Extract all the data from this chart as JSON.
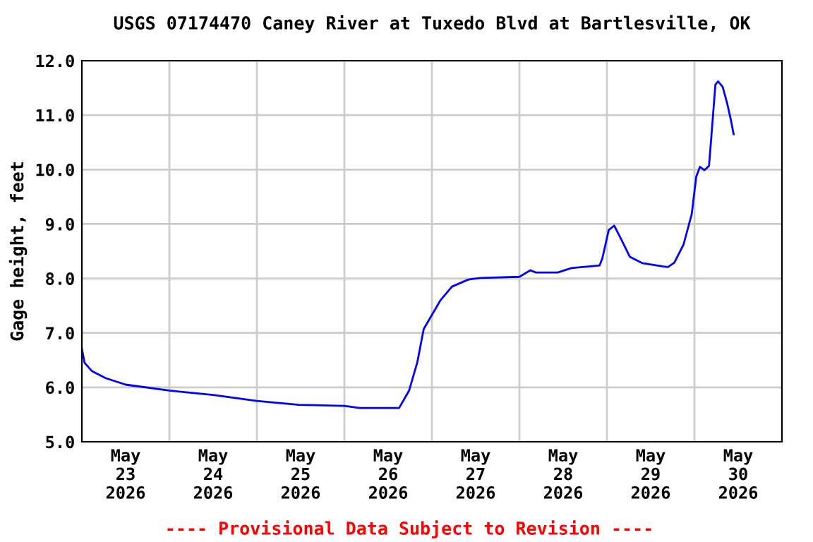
{
  "chart_data": {
    "type": "line",
    "title": "USGS 07174470 Caney River at Tuxedo Blvd at Bartlesville, OK",
    "ylabel": "Gage height, feet",
    "x": [
      "2026-05-23T00:00",
      "2026-05-23T00:45",
      "2026-05-23T02:45",
      "2026-05-23T06:30",
      "2026-05-23T12:00",
      "2026-05-24T00:00",
      "2026-05-24T12:00",
      "2026-05-25T00:00",
      "2026-05-25T11:30",
      "2026-05-26T00:00",
      "2026-05-26T04:15",
      "2026-05-26T15:00",
      "2026-05-26T17:45",
      "2026-05-26T20:00",
      "2026-05-26T21:45",
      "2026-05-27T00:00",
      "2026-05-27T02:15",
      "2026-05-27T05:30",
      "2026-05-27T10:00",
      "2026-05-27T13:15",
      "2026-05-28T00:00",
      "2026-05-28T03:00",
      "2026-05-28T04:30",
      "2026-05-28T10:30",
      "2026-05-28T14:15",
      "2026-05-28T22:00",
      "2026-05-28T22:45",
      "2026-05-29T00:30",
      "2026-05-29T02:00",
      "2026-05-29T04:00",
      "2026-05-29T06:15",
      "2026-05-29T09:45",
      "2026-05-29T15:30",
      "2026-05-29T16:45",
      "2026-05-29T18:30",
      "2026-05-29T21:00",
      "2026-05-29T23:15",
      "2026-05-30T00:30",
      "2026-05-30T01:30",
      "2026-05-30T02:45",
      "2026-05-30T04:00",
      "2026-05-30T04:45",
      "2026-05-30T05:45",
      "2026-05-30T06:30",
      "2026-05-30T07:45",
      "2026-05-30T09:00",
      "2026-05-30T10:00",
      "2026-05-30T10:45"
    ],
    "series": [
      {
        "color": "#0000ff",
        "values": [
          6.71,
          6.45,
          6.3,
          6.17,
          6.05,
          5.94,
          5.86,
          5.75,
          5.68,
          5.66,
          5.62,
          5.62,
          5.94,
          6.46,
          7.07,
          7.33,
          7.59,
          7.85,
          7.98,
          8.01,
          8.03,
          8.15,
          8.11,
          8.11,
          8.19,
          8.24,
          8.37,
          8.89,
          8.97,
          8.71,
          8.4,
          8.28,
          8.22,
          8.21,
          8.29,
          8.62,
          9.18,
          9.87,
          10.05,
          9.99,
          10.07,
          10.7,
          11.56,
          11.62,
          11.52,
          11.21,
          10.91,
          10.65
        ]
      }
    ],
    "xlim": [
      "2026-05-23T00:00",
      "2026-05-31T00:00"
    ],
    "xticks": [
      {
        "value": "2026-05-23T12:00",
        "label": "May\n23\n2026"
      },
      {
        "value": "2026-05-24T12:00",
        "label": "May\n24\n2026"
      },
      {
        "value": "2026-05-25T12:00",
        "label": "May\n25\n2026"
      },
      {
        "value": "2026-05-26T12:00",
        "label": "May\n26\n2026"
      },
      {
        "value": "2026-05-27T12:00",
        "label": "May\n27\n2026"
      },
      {
        "value": "2026-05-28T12:00",
        "label": "May\n28\n2026"
      },
      {
        "value": "2026-05-29T12:00",
        "label": "May\n29\n2026"
      },
      {
        "value": "2026-05-30T12:00",
        "label": "May\n30\n2026"
      },
      {
        "value": "2026-05-24T00:00",
        "label": null
      },
      {
        "value": "2026-05-25T00:00",
        "label": null
      },
      {
        "value": "2026-05-26T00:00",
        "label": null
      },
      {
        "value": "2026-05-27T00:00",
        "label": null
      },
      {
        "value": "2026-05-28T00:00",
        "label": null
      },
      {
        "value": "2026-05-29T00:00",
        "label": null
      },
      {
        "value": "2026-05-30T00:00",
        "label": null
      }
    ],
    "ylim": [
      5.0,
      12.0
    ],
    "yticks": [
      {
        "value": 5,
        "label": "5.0"
      },
      {
        "value": 6,
        "label": "6.0"
      },
      {
        "value": 7,
        "label": "7.0"
      },
      {
        "value": 8,
        "label": "8.0"
      },
      {
        "value": 9,
        "label": "9.0"
      },
      {
        "value": 10,
        "label": "10.0"
      },
      {
        "value": 11,
        "label": "11.0"
      },
      {
        "value": 12,
        "label": "12.0"
      }
    ],
    "grid": true,
    "legend": false,
    "line_style": "solid",
    "marker": "none",
    "annotations": [
      "---- Provisional Data Subject to Revision ----"
    ]
  }
}
